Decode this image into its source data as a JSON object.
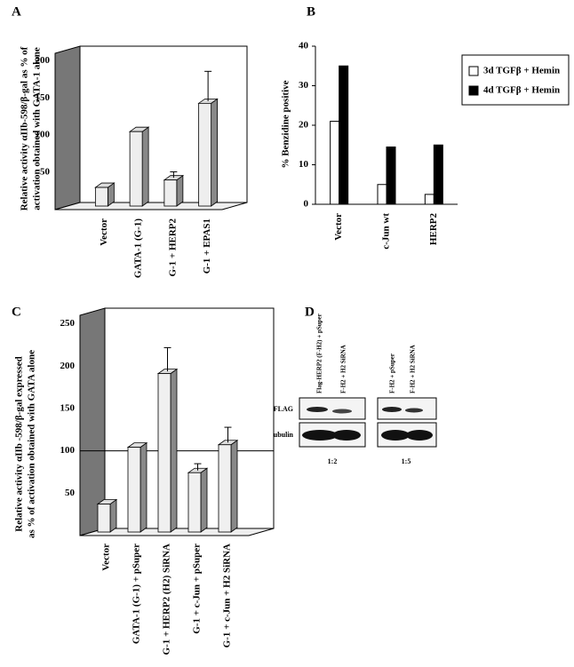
{
  "chart_data": [
    {
      "type": "bar",
      "panel": "A",
      "three_d": true,
      "y_label_lines": [
        "Relative activity αIIb-598/β-gal as % of",
        "activation obtained with GATA-1 alone"
      ],
      "categories": [
        "Vector",
        "GATA-1 (G-1)",
        "G-1 + HERP2",
        "G-1 + EPAS1"
      ],
      "values": [
        25,
        100,
        35,
        138
      ],
      "errors": [
        null,
        null,
        8,
        40
      ],
      "color": "#eeeeee",
      "ylim": [
        0,
        210
      ],
      "yticks": [
        50,
        100,
        150,
        200
      ]
    },
    {
      "type": "bar",
      "panel": "B",
      "three_d": false,
      "y_label": "% Benzidine positive",
      "categories": [
        "Vector",
        "c-Jun wt",
        "HERP2"
      ],
      "series": [
        {
          "name": "3d TGFβ + Hemin",
          "color": "#ffffff",
          "values": [
            21,
            5,
            2.5
          ]
        },
        {
          "name": "4d TGFβ + Hemin",
          "color": "#000000",
          "values": [
            35,
            14.5,
            15
          ]
        }
      ],
      "ylim": [
        0,
        40
      ],
      "yticks": [
        0,
        10,
        20,
        30,
        40
      ],
      "legend": "right"
    },
    {
      "type": "bar",
      "panel": "C",
      "three_d": true,
      "y_label_lines": [
        "Relative activity αIIb -598/β-gal expressed",
        "as % of activation obtained with GATA alone"
      ],
      "categories": [
        "Vector",
        "GATA-1 (G-1) + pSuper",
        "G-1 + HERP2 (H2) SiRNA",
        "G-1 + c-Jun + pSuper",
        "G-1 + c-Jun + H2 SiRNA"
      ],
      "values": [
        33,
        100,
        187,
        70,
        103
      ],
      "errors": [
        null,
        null,
        28,
        8,
        18
      ],
      "color": "#f0f0f0",
      "reference_line": 100,
      "ylim": [
        0,
        260
      ],
      "yticks": [
        50,
        100,
        150,
        200,
        250
      ]
    }
  ],
  "blot": {
    "panel": "D",
    "lanes": [
      "Flag-HERP2 (F-H2) + pSuper",
      "F-H2 + H2 SiRNA",
      "F-H2 + pSuper",
      "F-H2 + H2 SiRNA"
    ],
    "rows": [
      "α-FLAG",
      "α-Tubulin"
    ],
    "ratios": [
      "1:2",
      "1:5"
    ]
  }
}
